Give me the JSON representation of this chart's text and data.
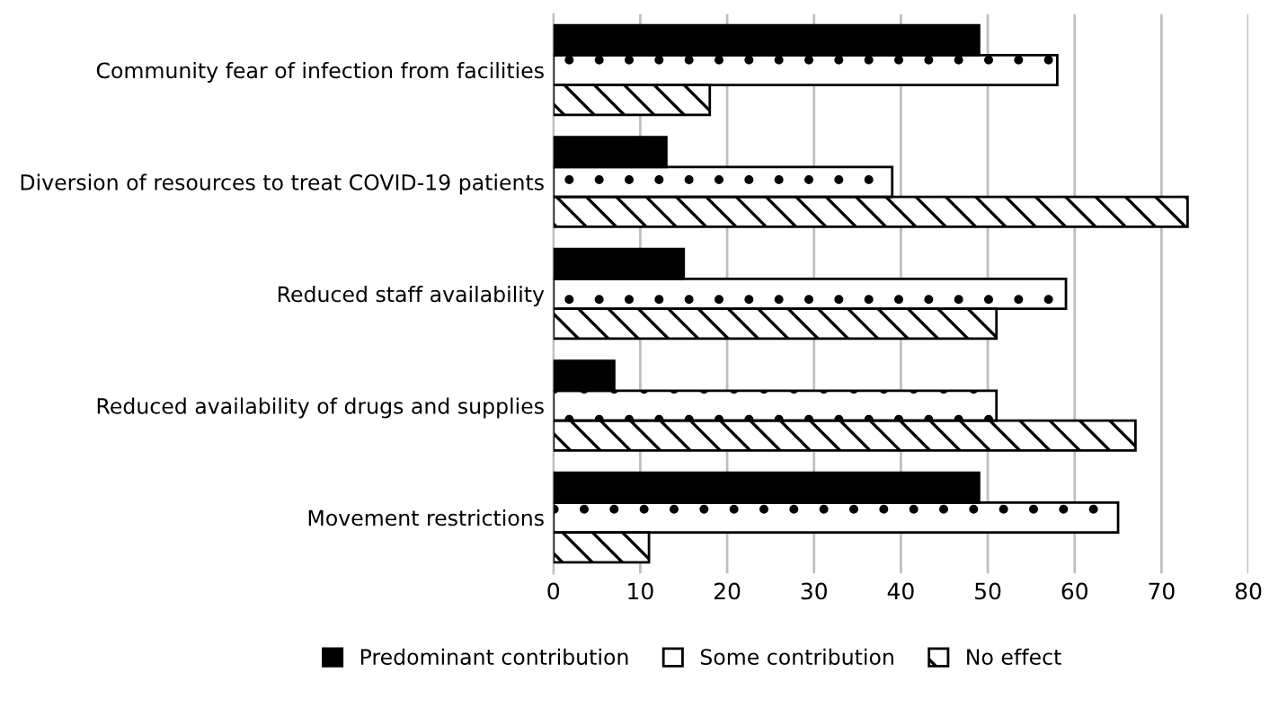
{
  "chart_data": {
    "type": "bar",
    "orientation": "horizontal",
    "categories": [
      "Community fear of infection from facilities",
      "Diversion of resources to treat COVID-19 patients",
      "Reduced staff availability",
      "Reduced availability of drugs and supplies",
      "Movement restrictions"
    ],
    "series": [
      {
        "name": "Predominant contribution",
        "color": "#000000",
        "values": [
          49,
          13,
          15,
          7,
          49
        ]
      },
      {
        "name": "Some contribution",
        "color": "#ffffff",
        "values": [
          58,
          39,
          59,
          51,
          65
        ]
      },
      {
        "name": "No effect",
        "color": "#ffffff",
        "values": [
          18,
          73,
          51,
          67,
          11
        ]
      }
    ],
    "xlim": [
      0,
      80
    ],
    "xticks": [
      0,
      10,
      20,
      30,
      40,
      50,
      60,
      70,
      80
    ],
    "grid": "x",
    "legend": "bottom"
  }
}
